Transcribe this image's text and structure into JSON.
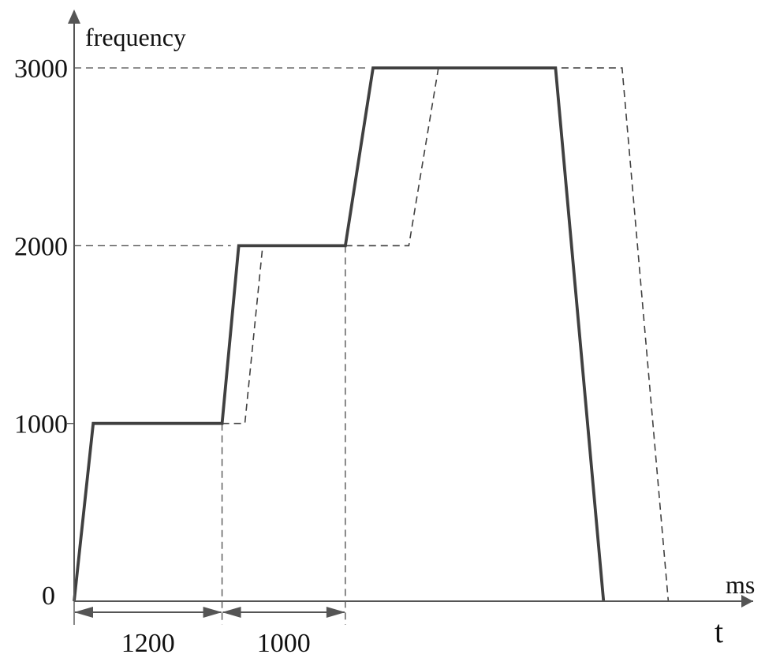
{
  "chart_data": {
    "type": "line",
    "ylabel": "frequency",
    "x_unit": "ms",
    "x_symbol": "t",
    "yticks": [
      0,
      1000,
      2000,
      3000
    ],
    "ylim": [
      0,
      3000
    ],
    "series": [
      {
        "style": "solid",
        "points": [
          [
            0,
            0
          ],
          [
            155,
            1000
          ],
          [
            1200,
            1000
          ],
          [
            1335,
            2000
          ],
          [
            2200,
            2000
          ],
          [
            2425,
            3000
          ],
          [
            3905,
            3000
          ],
          [
            4295,
            0
          ]
        ]
      },
      {
        "style": "dashed",
        "points": [
          [
            0,
            0
          ],
          [
            155,
            1000
          ],
          [
            1200,
            1000
          ],
          [
            1385,
            1000
          ],
          [
            1530,
            2000
          ],
          [
            2200,
            2000
          ],
          [
            2715,
            2000
          ],
          [
            2955,
            3000
          ],
          [
            3905,
            3000
          ],
          [
            4445,
            3000
          ],
          [
            4820,
            0
          ]
        ]
      }
    ],
    "dimensions": [
      {
        "label": "1200",
        "from": 0,
        "to": 1200
      },
      {
        "label": "1000",
        "from": 1200,
        "to": 2200
      }
    ],
    "colors": {
      "solid": "#404040",
      "dashed": "#404040",
      "axes": "#555555"
    }
  }
}
